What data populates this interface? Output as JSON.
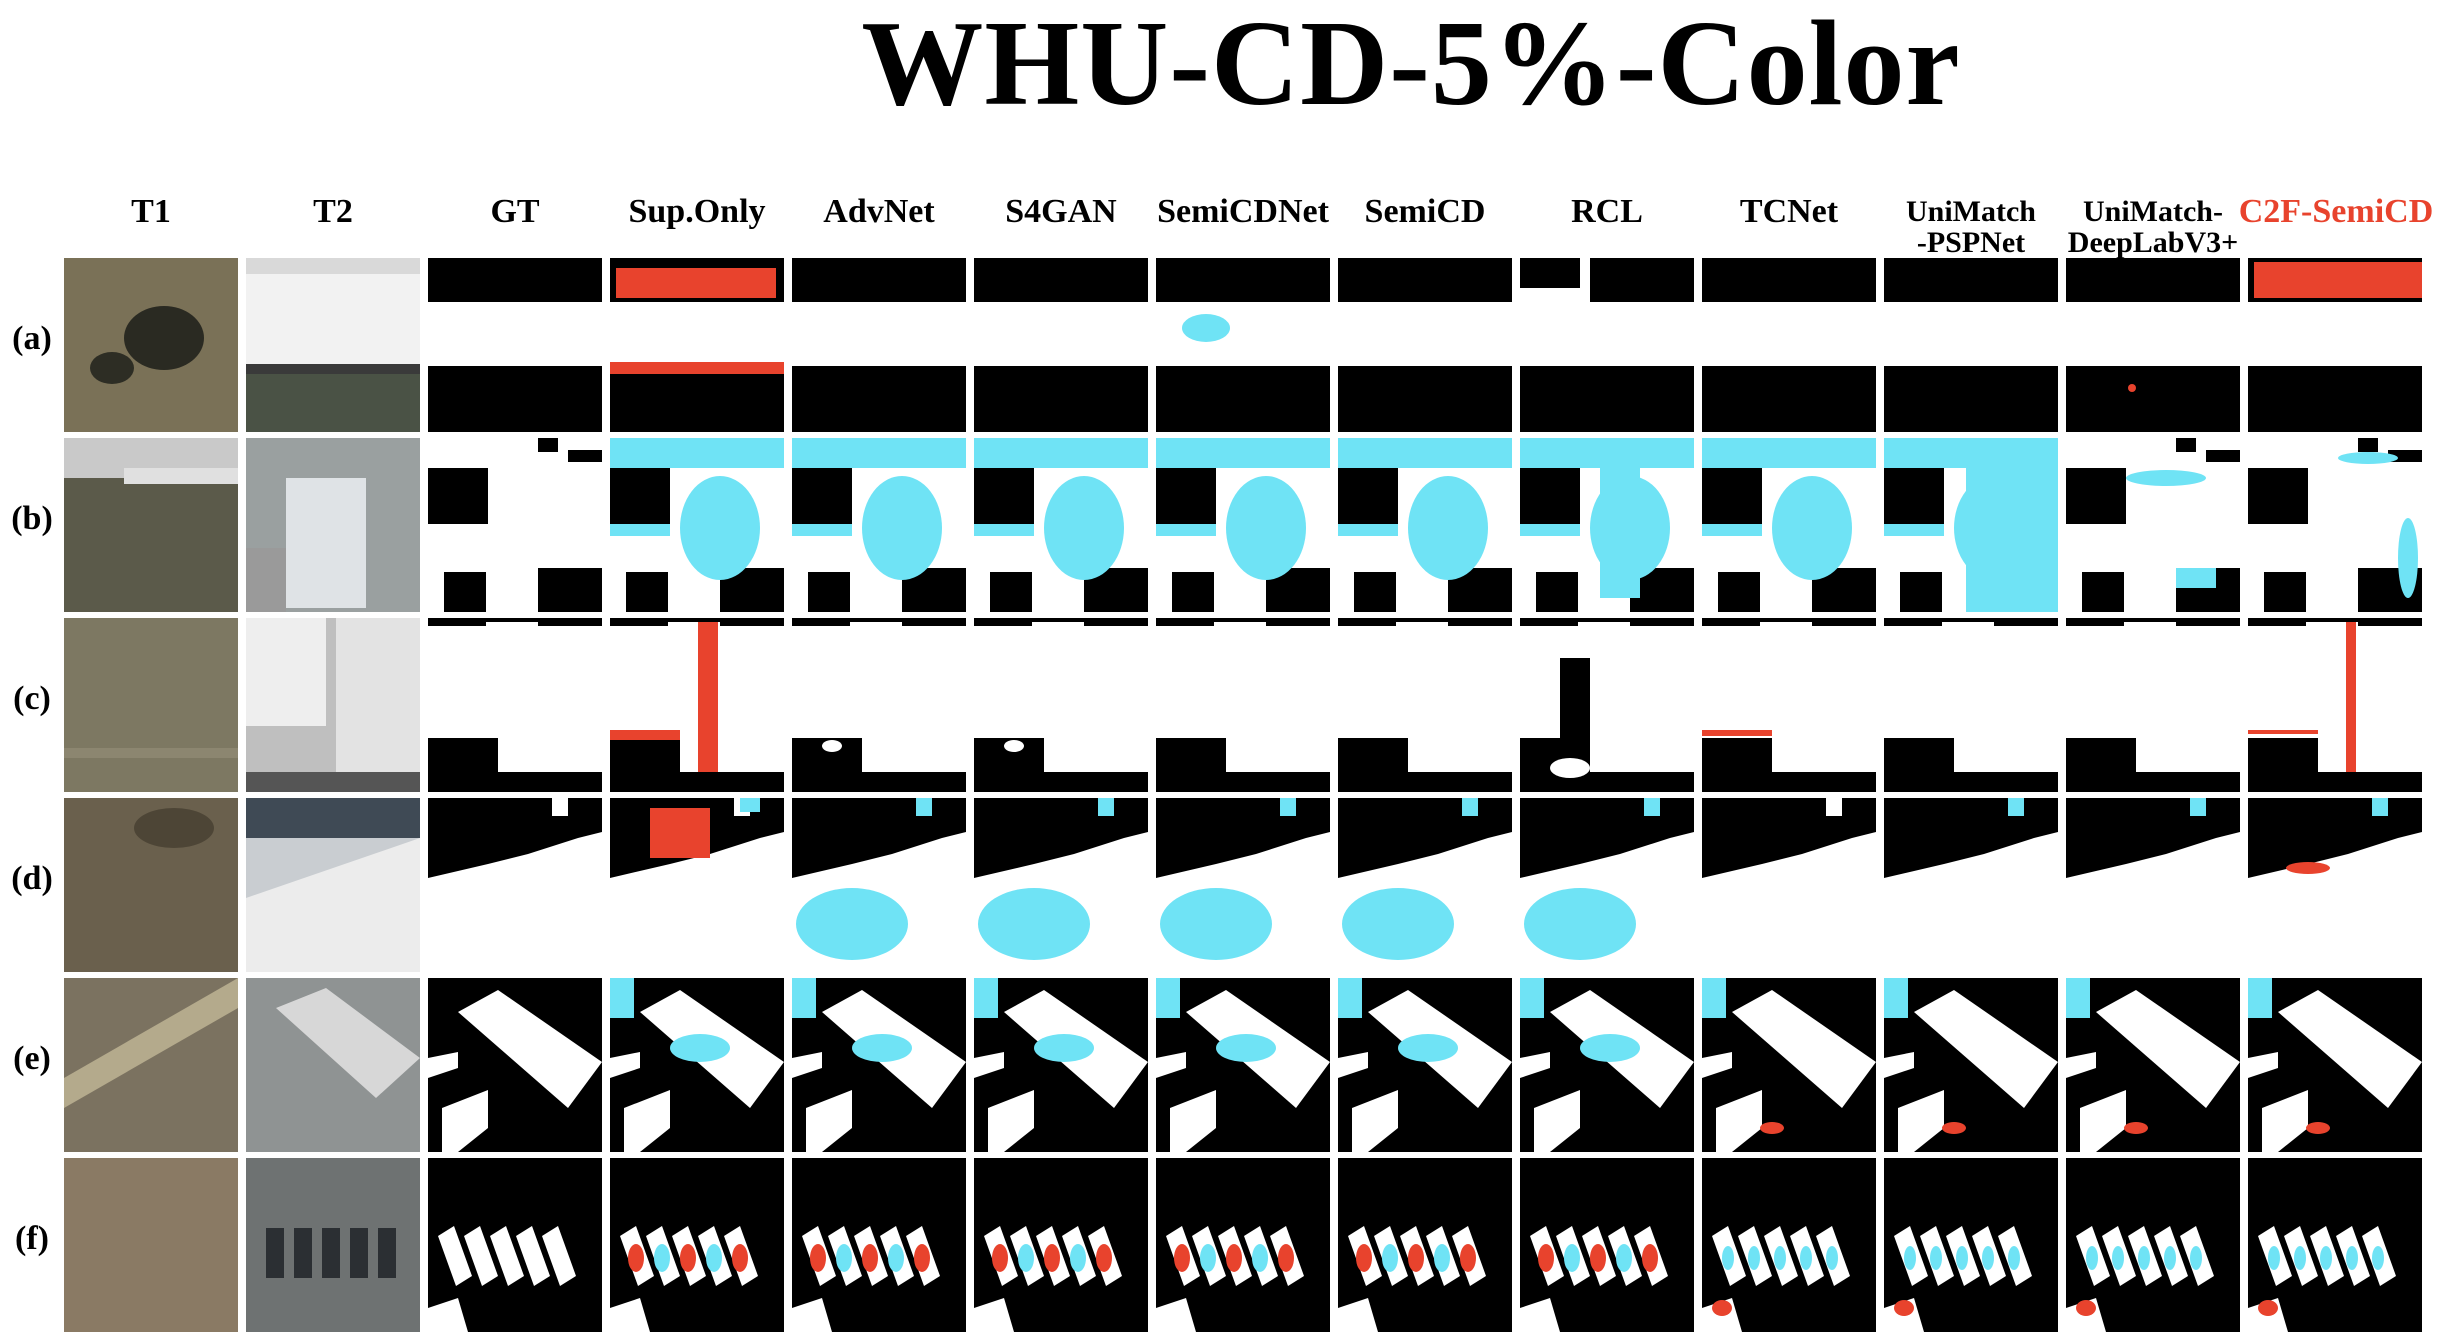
{
  "figure": {
    "title": "WHU-CD-5%-Color"
  },
  "columns": [
    {
      "key": "t1",
      "label": "T1",
      "kind": "photo",
      "highlight": false
    },
    {
      "key": "t2",
      "label": "T2",
      "kind": "photo",
      "highlight": false
    },
    {
      "key": "gt",
      "label": "GT",
      "kind": "map",
      "highlight": false
    },
    {
      "key": "sup-only",
      "label": "Sup.Only",
      "kind": "map",
      "highlight": false
    },
    {
      "key": "advnet",
      "label": "AdvNet",
      "kind": "map",
      "highlight": false
    },
    {
      "key": "s4gan",
      "label": "S4GAN",
      "kind": "map",
      "highlight": false
    },
    {
      "key": "semicdnet",
      "label": "SemiCDNet",
      "kind": "map",
      "highlight": false
    },
    {
      "key": "semicd",
      "label": "SemiCD",
      "kind": "map",
      "highlight": false
    },
    {
      "key": "rcl",
      "label": "RCL",
      "kind": "map",
      "highlight": false
    },
    {
      "key": "tcnet",
      "label": "TCNet",
      "kind": "map",
      "highlight": false
    },
    {
      "key": "unimatch-pspnet",
      "label": "UniMatch\n-PSPNet",
      "kind": "map",
      "highlight": false
    },
    {
      "key": "unimatch-deeplabv3",
      "label": "UniMatch-\nDeepLabV3+",
      "kind": "map",
      "highlight": false
    },
    {
      "key": "c2f-semicd",
      "label": "C2F-SemiCD",
      "kind": "map",
      "highlight": true
    }
  ],
  "rows": [
    {
      "key": "a",
      "label": "(a)"
    },
    {
      "key": "b",
      "label": "(b)"
    },
    {
      "key": "c",
      "label": "(c)"
    },
    {
      "key": "d",
      "label": "(d)"
    },
    {
      "key": "e",
      "label": "(e)"
    },
    {
      "key": "f",
      "label": "(f)"
    }
  ],
  "colors": {
    "changed": "#ffffff",
    "unchanged": "#000000",
    "false_positive": "#e8432d",
    "false_negative": "#6fe3f5",
    "title": "#000000",
    "highlight": "#e8432d"
  }
}
